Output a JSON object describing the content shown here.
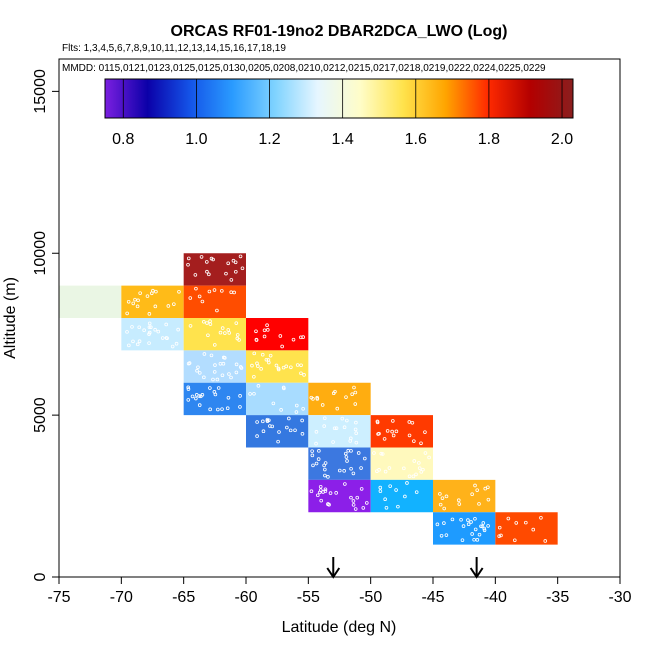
{
  "chart_data": {
    "type": "heatmap",
    "title": "ORCAS RF01-19no2 DBAR2DCA_LWO (Log)",
    "flights_label": "Flts: 1,3,4,5,6,7,8,9,10,11,12,13,14,15,16,17,18,19",
    "mmdd_label": "MMDD: 0115,0121,0123,0125,0125,0130,0205,0208,0210,0212,0215,0217,0218,0219,0222,0224,0225,0229",
    "xlabel": "Latitude (deg N)",
    "ylabel": "Altitude (m)",
    "xlim": [
      -75,
      -30
    ],
    "ylim": [
      0,
      16000
    ],
    "x_ticks": [
      -75,
      -70,
      -65,
      -60,
      -55,
      -50,
      -45,
      -40,
      -35,
      -30
    ],
    "y_ticks": [
      0,
      5000,
      10000,
      15000
    ],
    "colorbar": {
      "min": 0.75,
      "max": 2.03,
      "ticks": [
        0.8,
        1.0,
        1.2,
        1.4,
        1.6,
        1.8,
        2.0
      ],
      "tick_labels": [
        "0.8",
        "1.0",
        "1.2",
        "1.4",
        "1.6",
        "1.8",
        "2.0"
      ],
      "colormap": [
        "#7b1fe0",
        "#0b00a8",
        "#1454e8",
        "#2a9bff",
        "#7fd3ff",
        "#e6f6ff",
        "#fffdc8",
        "#ffe34d",
        "#ffa500",
        "#ff2a00",
        "#b30000",
        "#8b1e1e"
      ]
    },
    "cells": [
      {
        "lat": [
          -75,
          -70
        ],
        "alt": [
          8000,
          9000
        ],
        "value": 1.45,
        "color": "#eaf6e4"
      },
      {
        "lat": [
          -70,
          -65
        ],
        "alt": [
          8000,
          9000
        ],
        "value": 1.65,
        "color": "#ffbb18"
      },
      {
        "lat": [
          -70,
          -65
        ],
        "alt": [
          7000,
          8000
        ],
        "value": 1.3,
        "color": "#c7ecff"
      },
      {
        "lat": [
          -65,
          -60
        ],
        "alt": [
          9000,
          10000
        ],
        "value": 2.0,
        "color": "#a41e1e"
      },
      {
        "lat": [
          -65,
          -60
        ],
        "alt": [
          8000,
          9000
        ],
        "value": 1.85,
        "color": "#ff4d00"
      },
      {
        "lat": [
          -65,
          -60
        ],
        "alt": [
          7000,
          8000
        ],
        "value": 1.55,
        "color": "#ffe34d"
      },
      {
        "lat": [
          -65,
          -60
        ],
        "alt": [
          6000,
          7000
        ],
        "value": 1.25,
        "color": "#b3ddff"
      },
      {
        "lat": [
          -65,
          -60
        ],
        "alt": [
          5000,
          6000
        ],
        "value": 1.05,
        "color": "#2e86f0"
      },
      {
        "lat": [
          -60,
          -55
        ],
        "alt": [
          7000,
          8000
        ],
        "value": 1.88,
        "color": "#ff0000"
      },
      {
        "lat": [
          -60,
          -55
        ],
        "alt": [
          6000,
          7000
        ],
        "value": 1.58,
        "color": "#ffe34d"
      },
      {
        "lat": [
          -60,
          -55
        ],
        "alt": [
          5000,
          6000
        ],
        "value": 1.2,
        "color": "#a8dcff"
      },
      {
        "lat": [
          -60,
          -55
        ],
        "alt": [
          4000,
          5000
        ],
        "value": 1.0,
        "color": "#3478e0"
      },
      {
        "lat": [
          -55,
          -50
        ],
        "alt": [
          5000,
          6000
        ],
        "value": 1.65,
        "color": "#ffad10"
      },
      {
        "lat": [
          -55,
          -50
        ],
        "alt": [
          4000,
          5000
        ],
        "value": 1.3,
        "color": "#cdefff"
      },
      {
        "lat": [
          -55,
          -50
        ],
        "alt": [
          3000,
          4000
        ],
        "value": 1.0,
        "color": "#3c78e0"
      },
      {
        "lat": [
          -55,
          -50
        ],
        "alt": [
          2000,
          3000
        ],
        "value": 0.8,
        "color": "#8c1fe8"
      },
      {
        "lat": [
          -50,
          -45
        ],
        "alt": [
          4000,
          5000
        ],
        "value": 1.85,
        "color": "#ff3a00"
      },
      {
        "lat": [
          -50,
          -45
        ],
        "alt": [
          3000,
          4000
        ],
        "value": 1.45,
        "color": "#fff9bd"
      },
      {
        "lat": [
          -50,
          -45
        ],
        "alt": [
          2000,
          3000
        ],
        "value": 1.2,
        "color": "#12b2ff"
      },
      {
        "lat": [
          -45,
          -40
        ],
        "alt": [
          2000,
          3000
        ],
        "value": 1.65,
        "color": "#ffb21a"
      },
      {
        "lat": [
          -45,
          -40
        ],
        "alt": [
          1000,
          2000
        ],
        "value": 1.1,
        "color": "#1e9bff"
      },
      {
        "lat": [
          -40,
          -35
        ],
        "alt": [
          1000,
          2000
        ],
        "value": 1.85,
        "color": "#ff4a00"
      }
    ],
    "arrows_at_lat": [
      -53,
      -41.5
    ]
  }
}
